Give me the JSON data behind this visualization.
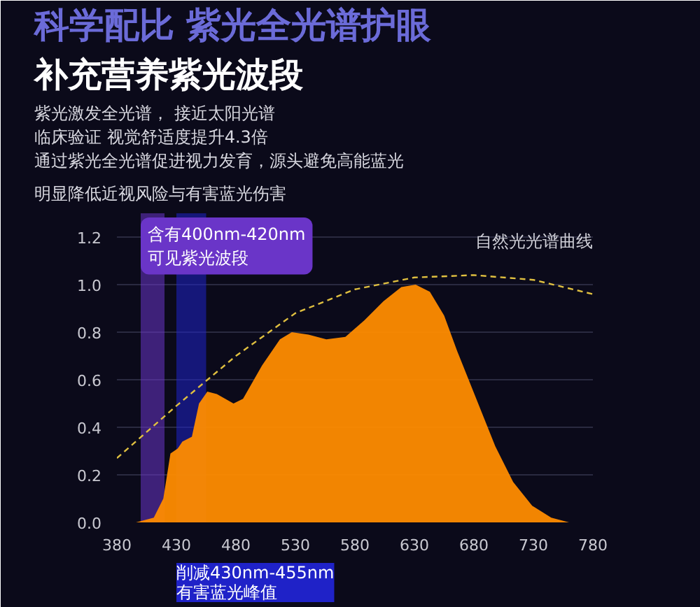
{
  "chart_data": {
    "type": "area",
    "title": "科学配比 紫光全光谱护眼",
    "subtitle": "补充营养紫光波段",
    "annotations": [
      "紫光激发全光谱， 接近太阳光谱",
      "临床验证 视觉舒适度提升4.3倍",
      "通过紫光全光谱促进视力发育，源头避免高能蓝光",
      "明显降低近视风险与有害蓝光伤害"
    ],
    "series": [
      {
        "color": "#ff8c00",
        "x": [
          396,
          411,
          419,
          425,
          431,
          435,
          443,
          449,
          456,
          464,
          478,
          486,
          502,
          517,
          527,
          541,
          556,
          572,
          588,
          604,
          619,
          631,
          643,
          655,
          666,
          682,
          698,
          713,
          729,
          745,
          760,
          776
        ],
        "values": [
          0,
          0.02,
          0.1,
          0.29,
          0.31,
          0.34,
          0.36,
          0.5,
          0.55,
          0.54,
          0.5,
          0.52,
          0.66,
          0.77,
          0.8,
          0.79,
          0.77,
          0.78,
          0.85,
          0.93,
          0.99,
          1.0,
          0.97,
          0.87,
          0.72,
          0.52,
          0.32,
          0.17,
          0.07,
          0.02,
          0,
          0
        ]
      },
      {
        "type": "line",
        "name": "自然光光谱曲线",
        "color": "#e0c040",
        "line_style": "dashed",
        "x": [
          380,
          430,
          480,
          530,
          580,
          630,
          680,
          730,
          780
        ],
        "values": [
          0.27,
          0.49,
          0.7,
          0.88,
          0.98,
          1.03,
          1.04,
          1.02,
          0.96
        ]
      }
    ],
    "bands": [
      {
        "axis": "x",
        "from": 400,
        "to": 420,
        "label": "含有400nm-420nm\n可见紫光波段",
        "color": "#6a35c8"
      },
      {
        "axis": "x",
        "from": 430,
        "to": 455,
        "label": "削减430nm-455nm\n有害蓝光峰值",
        "color": "#1f22c8"
      }
    ],
    "xlim": [
      380,
      780
    ],
    "xticks": [
      380,
      430,
      480,
      530,
      580,
      630,
      680,
      730,
      780
    ],
    "ylim": [
      0,
      1.3
    ],
    "yticks": [
      {
        "value": 0,
        "label": "0.0"
      },
      {
        "value": 0.2,
        "label": "0.2"
      },
      {
        "value": 0.4,
        "label": "0.4"
      },
      {
        "value": 0.6,
        "label": "0.6"
      },
      {
        "value": 0.8,
        "label": "0.8"
      },
      {
        "value": 1.0,
        "label": "1.0"
      },
      {
        "value": 1.2,
        "label": "1.2"
      }
    ],
    "grid": "y"
  }
}
